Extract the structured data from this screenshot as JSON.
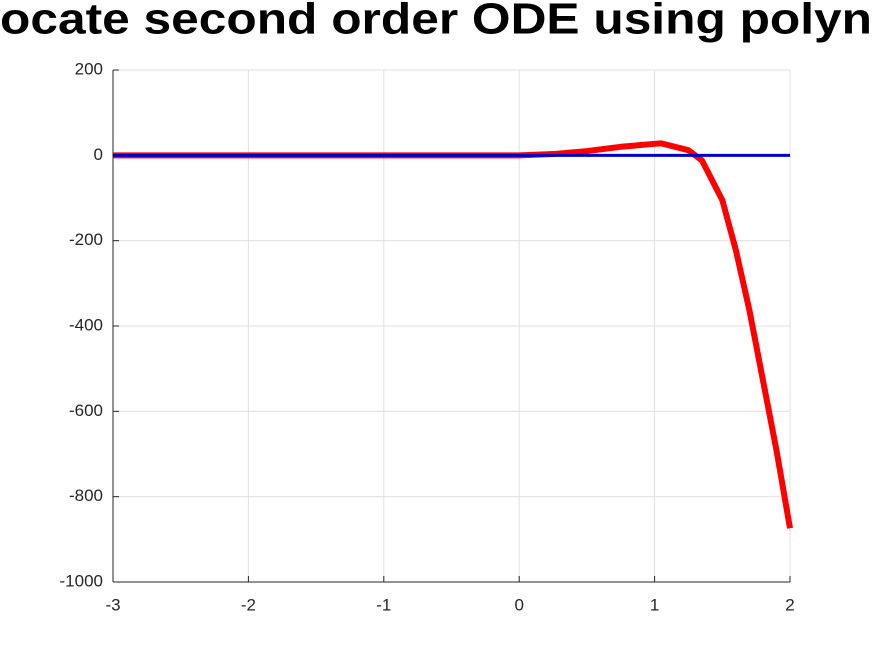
{
  "chart_data": {
    "type": "line",
    "title": "ocate second order ODE using polyn",
    "x": [
      -3,
      -2,
      -1,
      0,
      0.25,
      0.5,
      0.75,
      1,
      1.05,
      1.25,
      1.35,
      1.5,
      1.6,
      1.7,
      1.8,
      1.9,
      2
    ],
    "series": [
      {
        "color": "#ff0000",
        "values": [
          0,
          0,
          0,
          0,
          3,
          10,
          20,
          27,
          28,
          12,
          -12,
          -105,
          -222,
          -363,
          -527,
          -691,
          -874
        ]
      },
      {
        "color": "#0000cc",
        "values": [
          0,
          0,
          0,
          0,
          0,
          0,
          0,
          0,
          0,
          0,
          0,
          0,
          0,
          0,
          0,
          0,
          0
        ]
      }
    ],
    "xlim": [
      -3,
      2
    ],
    "xticks": [
      -3,
      -2,
      -1,
      0,
      1,
      2
    ],
    "ylim": [
      -1000,
      200
    ],
    "yticks": [
      -1000,
      -800,
      -600,
      -400,
      -200,
      0,
      200
    ],
    "grid": true
  }
}
